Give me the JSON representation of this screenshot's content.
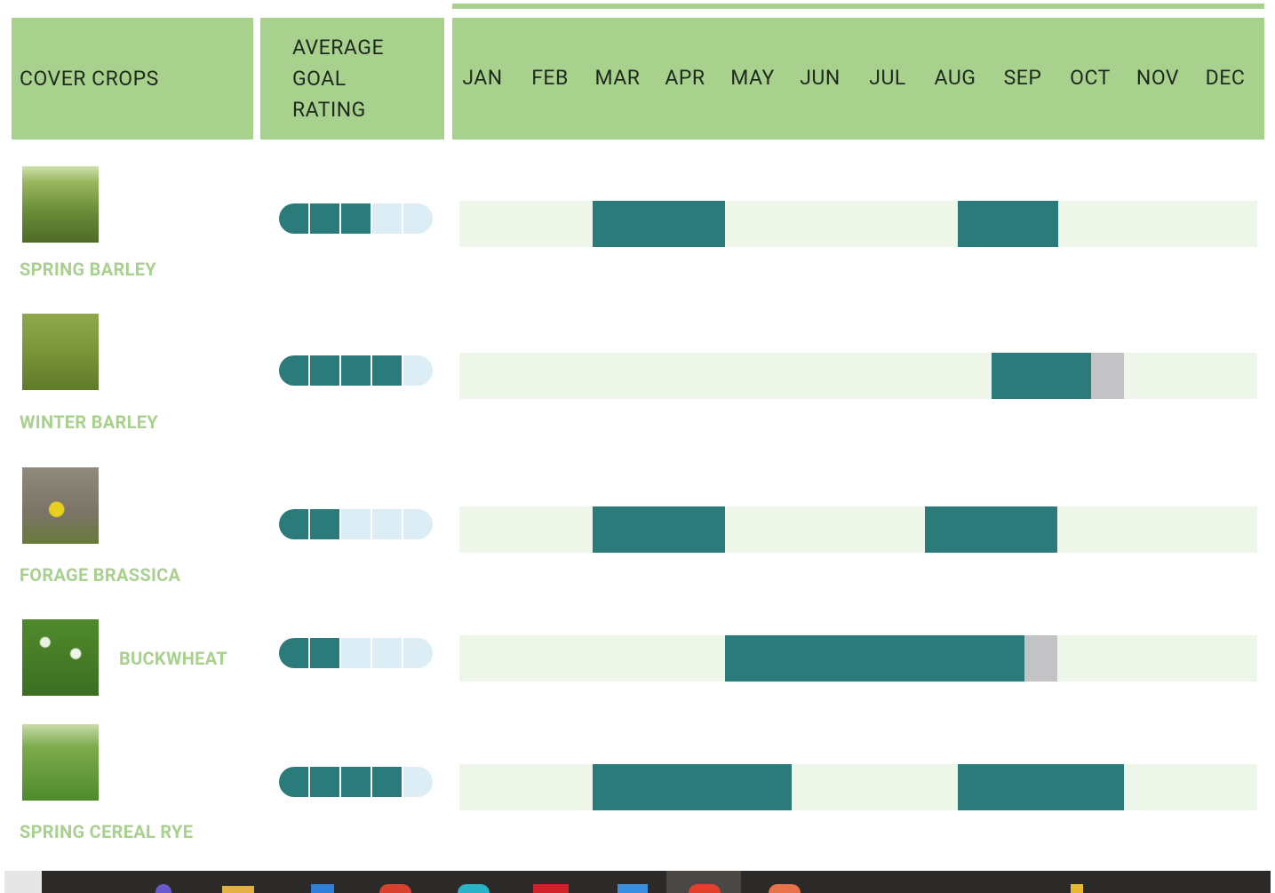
{
  "header": {
    "crop_column": "COVER CROPS",
    "rating_column": "AVERAGE GOAL RATING",
    "months": [
      "JAN",
      "FEB",
      "MAR",
      "APR",
      "MAY",
      "JUN",
      "JUL",
      "AUG",
      "SEP",
      "OCT",
      "NOV",
      "DEC"
    ]
  },
  "settings": {
    "rating_max": 5,
    "month_range": [
      0,
      12
    ],
    "window_color": "#2a7b7a",
    "late_color": "#c3c3c6",
    "track_color": "#eef6e9",
    "filled_color": "#2a7b7a",
    "empty_color": "#dcedf6"
  },
  "rows": [
    {
      "name": "SPRING BARLEY",
      "rating": 3,
      "windows": [
        {
          "start": 2,
          "end": 4
        },
        {
          "start": 7.5,
          "end": 9
        }
      ]
    },
    {
      "name": "WINTER BARLEY",
      "rating": 4,
      "windows": [
        {
          "start": 8,
          "end": 9.5
        }
      ],
      "late_windows": [
        {
          "start": 9.5,
          "end": 10
        }
      ]
    },
    {
      "name": "FORAGE BRASSICA",
      "rating": 2,
      "windows": [
        {
          "start": 2,
          "end": 4
        },
        {
          "start": 7,
          "end": 9
        }
      ]
    },
    {
      "name": "BUCKWHEAT",
      "rating": 2,
      "windows": [
        {
          "start": 4,
          "end": 8.5
        }
      ],
      "late_windows": [
        {
          "start": 8.5,
          "end": 9
        }
      ]
    },
    {
      "name": "SPRING CEREAL RYE",
      "rating": 4,
      "windows": [
        {
          "start": 2,
          "end": 5
        },
        {
          "start": 7.5,
          "end": 10
        }
      ]
    }
  ]
}
